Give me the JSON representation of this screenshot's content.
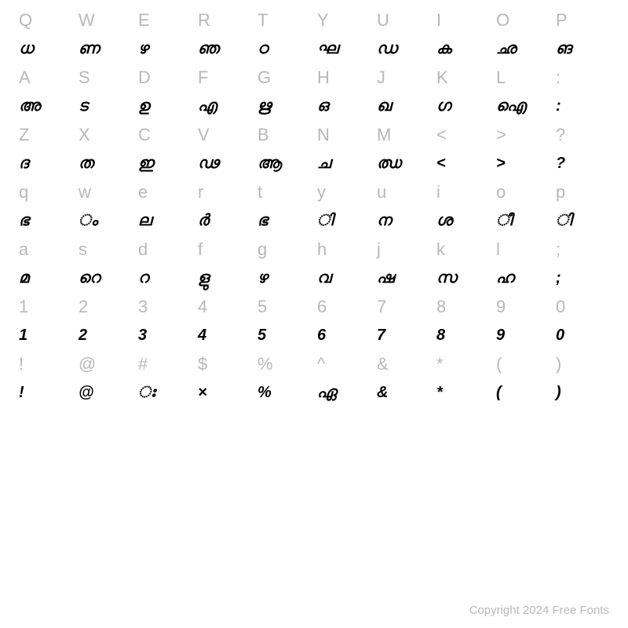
{
  "rows": [
    {
      "type": "label",
      "cells": [
        "Q",
        "W",
        "E",
        "R",
        "T",
        "Y",
        "U",
        "I",
        "O",
        "P"
      ]
    },
    {
      "type": "glyph",
      "cells": [
        "ധ",
        "ണ",
        "ഴ",
        "ഞ",
        "ഠ",
        "ഘ",
        "ഡ",
        "ക",
        "ഛ",
        "ങ"
      ]
    },
    {
      "type": "label",
      "cells": [
        "A",
        "S",
        "D",
        "F",
        "G",
        "H",
        "J",
        "K",
        "L",
        ":"
      ]
    },
    {
      "type": "glyph",
      "cells": [
        "അ",
        "ട",
        "ഉ",
        "എ",
        "ഋ",
        "ഒ",
        "ഖ",
        "ഗ",
        "ഐ",
        ":"
      ]
    },
    {
      "type": "label",
      "cells": [
        "Z",
        "X",
        "C",
        "V",
        "B",
        "N",
        "M",
        "<",
        ">",
        "?"
      ]
    },
    {
      "type": "glyph",
      "cells": [
        "ദ",
        "ത",
        "ഇ",
        "ഢ",
        "ആ",
        "ച",
        "ഝ",
        "<",
        ">",
        "?"
      ]
    },
    {
      "type": "label",
      "cells": [
        "q",
        "w",
        "e",
        "r",
        "t",
        "y",
        "u",
        "i",
        "o",
        "p"
      ]
    },
    {
      "type": "glyph",
      "cells": [
        "ഭ",
        "ം",
        "ല",
        "ർ",
        "ഭ",
        "ി",
        "ന",
        "ശ",
        "ീ",
        "ി"
      ]
    },
    {
      "type": "label",
      "cells": [
        "a",
        "s",
        "d",
        "f",
        "g",
        "h",
        "j",
        "k",
        "l",
        ";"
      ]
    },
    {
      "type": "glyph",
      "cells": [
        "മ",
        "റെ",
        "റ",
        "ളു",
        "ഴ",
        "വ",
        "ഷ",
        "സ",
        "ഹ",
        ";"
      ]
    },
    {
      "type": "label",
      "cells": [
        "1",
        "2",
        "3",
        "4",
        "5",
        "6",
        "7",
        "8",
        "9",
        "0"
      ]
    },
    {
      "type": "glyph",
      "cells": [
        "1",
        "2",
        "3",
        "4",
        "5",
        "6",
        "7",
        "8",
        "9",
        "0"
      ]
    },
    {
      "type": "label",
      "cells": [
        "!",
        "@",
        "#",
        "$",
        "%",
        "^",
        "&",
        "*",
        "(",
        ")"
      ]
    },
    {
      "type": "glyph",
      "cells": [
        "!",
        "@",
        "ഃ",
        "×",
        "%",
        "ഏ",
        "&",
        "*",
        "(",
        ")"
      ]
    }
  ],
  "footer": "Copyright 2024 Free Fonts",
  "style": {
    "label_color": "#b8b8b8",
    "glyph_color": "#000000",
    "background": "#ffffff",
    "label_fontsize": 22,
    "glyph_fontsize": 20
  }
}
